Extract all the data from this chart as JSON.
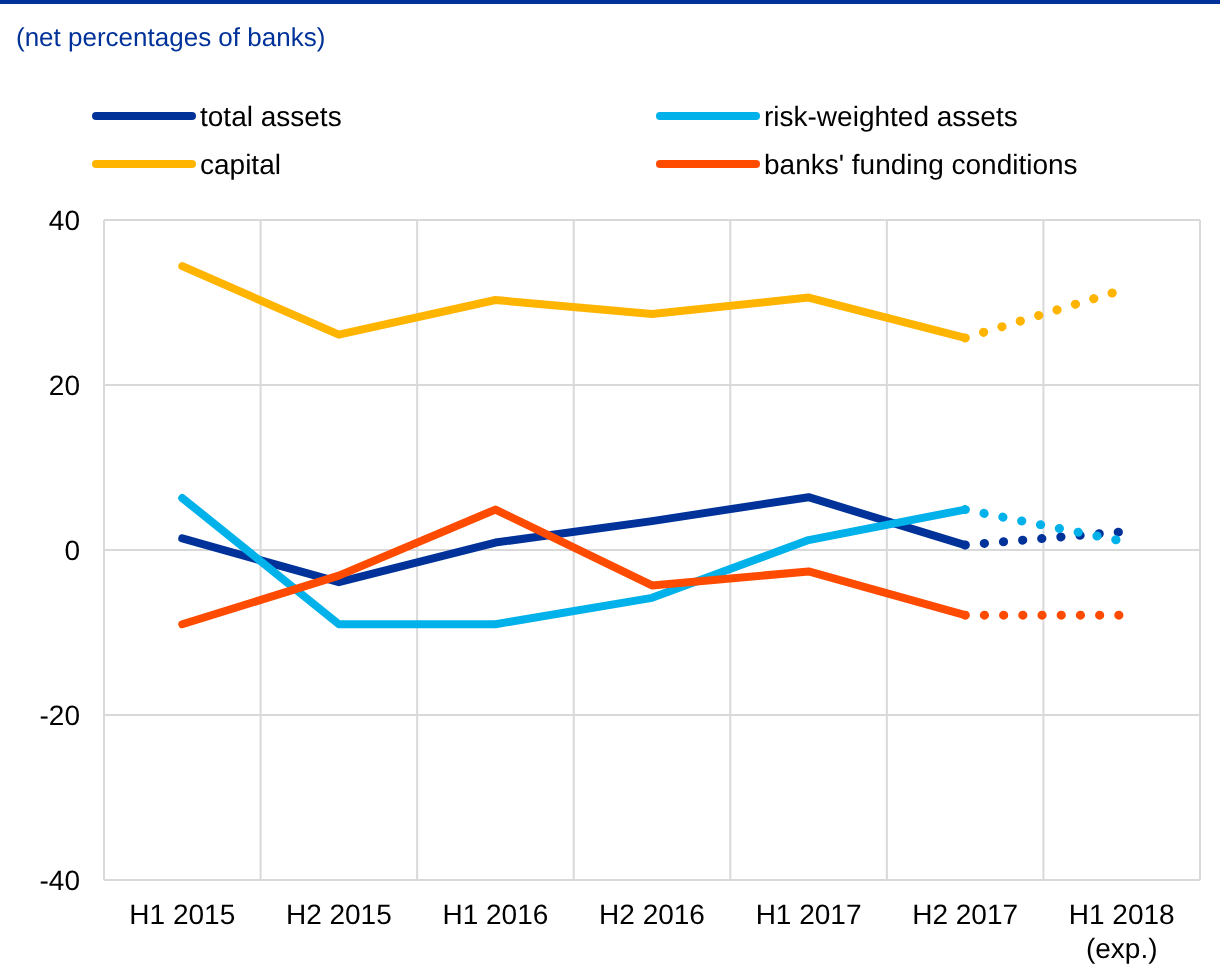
{
  "chart_data": {
    "type": "line",
    "title": "(net percentages of banks)",
    "categories": [
      "H1 2015",
      "H2 2015",
      "H1 2016",
      "H2 2016",
      "H1 2017",
      "H2 2017",
      "H1 2018\n(exp.)"
    ],
    "series": [
      {
        "name": "total assets",
        "color": "#003299",
        "values": [
          1.4,
          -3.9,
          0.9,
          3.5,
          6.4,
          0.6,
          null
        ]
      },
      {
        "name": "risk-weighted assets",
        "color": "#00b1ea",
        "values": [
          6.3,
          -9.0,
          -9.0,
          -5.8,
          1.2,
          4.9,
          null
        ]
      },
      {
        "name": "capital",
        "color": "#ffb400",
        "values": [
          34.4,
          26.1,
          30.3,
          28.6,
          30.6,
          25.7,
          null
        ]
      },
      {
        "name": "banks' funding conditions",
        "color": "#ff4b00",
        "values": [
          -9.0,
          -3.1,
          4.9,
          -4.3,
          -2.6,
          -7.9,
          null
        ]
      },
      {
        "color": "#003299",
        "line_style": "dotted",
        "values": [
          null,
          null,
          null,
          null,
          null,
          0.6,
          2.2
        ]
      },
      {
        "color": "#00b1ea",
        "line_style": "dotted",
        "values": [
          null,
          null,
          null,
          null,
          null,
          4.9,
          1.1
        ]
      },
      {
        "color": "#ffb400",
        "line_style": "dotted",
        "values": [
          null,
          null,
          null,
          null,
          null,
          25.7,
          31.5
        ]
      },
      {
        "color": "#ff4b00",
        "line_style": "dotted",
        "values": [
          null,
          null,
          null,
          null,
          null,
          -7.9,
          -7.9
        ]
      }
    ],
    "ylim": [
      -40,
      40
    ],
    "yticks": [
      -40,
      -20,
      0,
      20,
      40
    ],
    "grid": true,
    "legend": "top",
    "line_style": "solid"
  }
}
